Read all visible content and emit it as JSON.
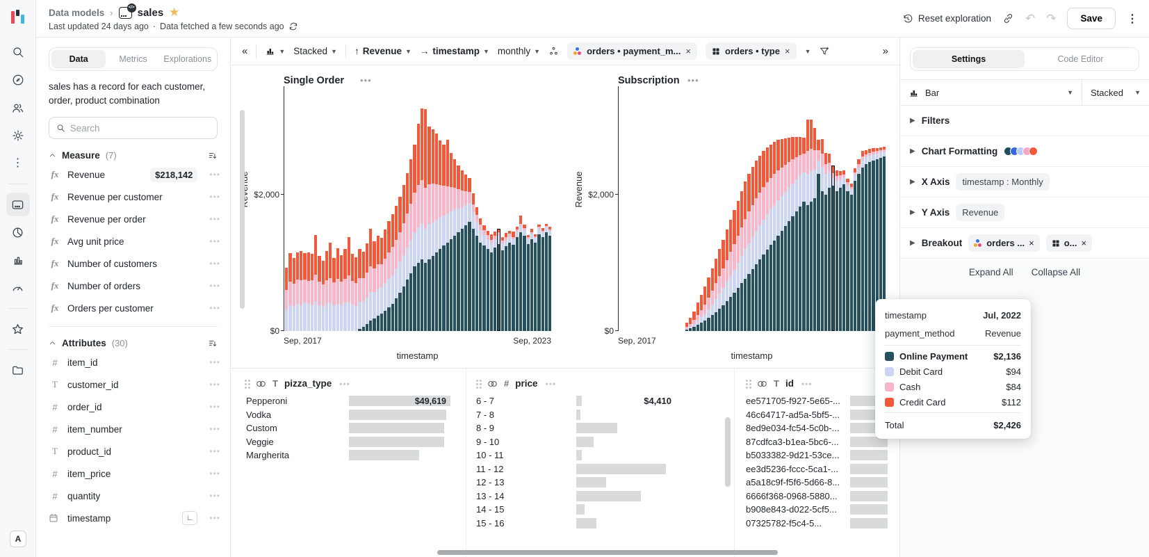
{
  "header": {
    "breadcrumb_root": "Data models",
    "breadcrumb_sep": "›",
    "model_name": "sales",
    "updated": "Last updated 24 days ago",
    "dot_sep": "·",
    "fetched": "Data fetched a few seconds ago",
    "reset_label": "Reset exploration",
    "save_label": "Save"
  },
  "nav_rail": {
    "avatar": "A",
    "icons": [
      "search",
      "explore",
      "members",
      "settings",
      "more",
      "data-model",
      "metrics",
      "charts",
      "dashboards",
      "favorites",
      "folders"
    ]
  },
  "data_panel": {
    "tabs": [
      "Data",
      "Metrics",
      "Explorations"
    ],
    "active_tab": "Data",
    "description": "sales has a record for each customer, order, product combination",
    "search_placeholder": "Search",
    "measures": {
      "title": "Measure",
      "count": "(7)",
      "items": [
        {
          "label": "Revenue",
          "value": "$218,142"
        },
        {
          "label": "Revenue per customer"
        },
        {
          "label": "Revenue per order"
        },
        {
          "label": "Avg unit price"
        },
        {
          "label": "Number of customers"
        },
        {
          "label": "Number of orders"
        },
        {
          "label": "Orders per customer"
        }
      ]
    },
    "attributes": {
      "title": "Attributes",
      "count": "(30)",
      "items": [
        {
          "icon": "number",
          "label": "item_id"
        },
        {
          "icon": "text",
          "label": "customer_id"
        },
        {
          "icon": "number",
          "label": "order_id"
        },
        {
          "icon": "number",
          "label": "item_number"
        },
        {
          "icon": "text",
          "label": "product_id"
        },
        {
          "icon": "number",
          "label": "item_price"
        },
        {
          "icon": "number",
          "label": "quantity"
        },
        {
          "icon": "date",
          "label": "timestamp",
          "has_granularity": true
        }
      ]
    }
  },
  "toolbar": {
    "collapse_glyph": "«",
    "expand_glyph": "»",
    "stacked_label": "Stacked",
    "y_field": "Revenue",
    "x_field": "timestamp",
    "granularity": "monthly",
    "breakout_chips": [
      {
        "label": "orders • payment_m..."
      },
      {
        "label": "orders • type"
      }
    ]
  },
  "chart_data": [
    {
      "type": "bar",
      "stacked": true,
      "title": "Single Order",
      "xlabel": "timestamp",
      "ylabel": "Revenue",
      "x_start": "Sep, 2017",
      "x_end": "Sep, 2023",
      "x_interval": "monthly",
      "months": 73,
      "yticks": [
        "$0",
        "$2,000"
      ],
      "ylim": [
        0,
        3600
      ],
      "series_order": [
        "Online Payment",
        "Debit Card",
        "Cash",
        "Credit Card"
      ],
      "colors": [
        "#27505e",
        "#ccd6f3",
        "#f8b6c8",
        "#f2583a"
      ],
      "highlight_index": 58,
      "bars": [
        [
          0,
          320,
          280,
          330
        ],
        [
          0,
          380,
          340,
          420
        ],
        [
          0,
          360,
          330,
          380
        ],
        [
          0,
          400,
          350,
          400
        ],
        [
          0,
          380,
          360,
          430
        ],
        [
          0,
          420,
          340,
          380
        ],
        [
          0,
          400,
          330,
          420
        ],
        [
          0,
          380,
          360,
          390
        ],
        [
          0,
          430,
          400,
          580
        ],
        [
          0,
          380,
          340,
          380
        ],
        [
          0,
          360,
          320,
          350
        ],
        [
          0,
          400,
          340,
          430
        ],
        [
          0,
          420,
          360,
          520
        ],
        [
          0,
          380,
          330,
          360
        ],
        [
          0,
          400,
          360,
          450
        ],
        [
          0,
          380,
          340,
          390
        ],
        [
          0,
          420,
          350,
          430
        ],
        [
          0,
          430,
          390,
          560
        ],
        [
          0,
          390,
          340,
          400
        ],
        [
          0,
          370,
          330,
          380
        ],
        [
          30,
          400,
          350,
          420
        ],
        [
          60,
          380,
          340,
          380
        ],
        [
          100,
          400,
          360,
          430
        ],
        [
          150,
          420,
          380,
          550
        ],
        [
          180,
          390,
          350,
          400
        ],
        [
          220,
          400,
          360,
          420
        ],
        [
          260,
          380,
          340,
          390
        ],
        [
          300,
          400,
          360,
          430
        ],
        [
          350,
          420,
          380,
          460
        ],
        [
          400,
          430,
          400,
          480
        ],
        [
          480,
          440,
          420,
          500
        ],
        [
          560,
          450,
          440,
          520
        ],
        [
          650,
          460,
          470,
          560
        ],
        [
          750,
          470,
          500,
          600
        ],
        [
          850,
          480,
          540,
          650
        ],
        [
          950,
          500,
          580,
          700
        ],
        [
          1000,
          520,
          620,
          900
        ],
        [
          1050,
          520,
          640,
          1050
        ],
        [
          1000,
          500,
          600,
          1150
        ],
        [
          1050,
          520,
          580,
          850
        ],
        [
          1100,
          500,
          560,
          800
        ],
        [
          1150,
          480,
          520,
          750
        ],
        [
          1200,
          460,
          480,
          650
        ],
        [
          1250,
          440,
          440,
          600
        ],
        [
          1300,
          420,
          400,
          680
        ],
        [
          1350,
          400,
          360,
          500
        ],
        [
          1400,
          380,
          320,
          420
        ],
        [
          1450,
          350,
          280,
          350
        ],
        [
          1500,
          320,
          240,
          300
        ],
        [
          1550,
          300,
          200,
          250
        ],
        [
          1600,
          280,
          160,
          200
        ],
        [
          1500,
          240,
          120,
          160
        ],
        [
          1400,
          200,
          100,
          120
        ],
        [
          1300,
          180,
          80,
          90
        ],
        [
          1250,
          160,
          70,
          70
        ],
        [
          1200,
          150,
          60,
          60
        ],
        [
          1150,
          140,
          50,
          80
        ],
        [
          1220,
          130,
          50,
          60
        ],
        [
          1280,
          120,
          45,
          55
        ],
        [
          1180,
          110,
          40,
          50
        ],
        [
          1240,
          100,
          40,
          60
        ],
        [
          1300,
          90,
          35,
          45
        ],
        [
          1260,
          85,
          30,
          80
        ],
        [
          1380,
          80,
          30,
          40
        ],
        [
          1450,
          90,
          35,
          120
        ],
        [
          1400,
          80,
          30,
          50
        ],
        [
          1280,
          70,
          25,
          35
        ],
        [
          1350,
          75,
          25,
          45
        ],
        [
          1300,
          70,
          20,
          30
        ],
        [
          1420,
          80,
          25,
          40
        ],
        [
          1380,
          70,
          20,
          35
        ],
        [
          1450,
          75,
          20,
          30
        ],
        [
          1400,
          70,
          20,
          40
        ]
      ]
    },
    {
      "type": "bar",
      "stacked": true,
      "title": "Subscription",
      "xlabel": "timestamp",
      "ylabel": "Revenue",
      "x_start": "Sep, 2017",
      "x_end": "Sep, 2023",
      "x_interval": "monthly",
      "months": 73,
      "yticks": [
        "$0",
        "$2,000"
      ],
      "ylim": [
        0,
        3600
      ],
      "series_order": [
        "Online Payment",
        "Debit Card",
        "Cash",
        "Credit Card"
      ],
      "colors": [
        "#27505e",
        "#ccd6f3",
        "#f8b6c8",
        "#f2583a"
      ],
      "highlight_index": 58,
      "bars": [
        [
          0,
          0,
          0,
          0
        ],
        [
          0,
          0,
          0,
          0
        ],
        [
          0,
          0,
          0,
          0
        ],
        [
          0,
          0,
          0,
          0
        ],
        [
          0,
          0,
          0,
          0
        ],
        [
          0,
          0,
          0,
          0
        ],
        [
          0,
          0,
          0,
          0
        ],
        [
          0,
          0,
          0,
          0
        ],
        [
          0,
          0,
          0,
          0
        ],
        [
          0,
          0,
          0,
          0
        ],
        [
          0,
          0,
          0,
          0
        ],
        [
          0,
          0,
          0,
          0
        ],
        [
          0,
          0,
          0,
          0
        ],
        [
          0,
          0,
          0,
          0
        ],
        [
          0,
          0,
          0,
          0
        ],
        [
          0,
          0,
          0,
          0
        ],
        [
          0,
          0,
          0,
          0
        ],
        [
          0,
          0,
          0,
          0
        ],
        [
          20,
          15,
          25,
          60
        ],
        [
          40,
          25,
          40,
          90
        ],
        [
          60,
          40,
          60,
          130
        ],
        [
          90,
          60,
          90,
          180
        ],
        [
          120,
          80,
          110,
          220
        ],
        [
          150,
          100,
          140,
          260
        ],
        [
          190,
          130,
          170,
          300
        ],
        [
          230,
          160,
          200,
          330
        ],
        [
          280,
          190,
          230,
          360
        ],
        [
          330,
          220,
          260,
          390
        ],
        [
          380,
          250,
          290,
          420
        ],
        [
          440,
          280,
          320,
          450
        ],
        [
          500,
          310,
          350,
          470
        ],
        [
          560,
          340,
          380,
          490
        ],
        [
          630,
          370,
          400,
          510
        ],
        [
          700,
          400,
          420,
          530
        ],
        [
          770,
          430,
          440,
          550
        ],
        [
          840,
          450,
          460,
          560
        ],
        [
          910,
          470,
          470,
          560
        ],
        [
          980,
          490,
          480,
          550
        ],
        [
          1050,
          500,
          480,
          540
        ],
        [
          1120,
          510,
          480,
          530
        ],
        [
          1190,
          520,
          470,
          510
        ],
        [
          1260,
          520,
          460,
          490
        ],
        [
          1330,
          520,
          450,
          470
        ],
        [
          1400,
          520,
          440,
          440
        ],
        [
          1470,
          510,
          420,
          420
        ],
        [
          1540,
          500,
          400,
          390
        ],
        [
          1610,
          490,
          380,
          360
        ],
        [
          1680,
          480,
          360,
          330
        ],
        [
          1750,
          470,
          330,
          300
        ],
        [
          1830,
          450,
          300,
          270
        ],
        [
          1900,
          430,
          270,
          240
        ],
        [
          1850,
          460,
          330,
          460
        ],
        [
          1900,
          450,
          320,
          430
        ],
        [
          1950,
          420,
          280,
          330
        ],
        [
          2300,
          200,
          150,
          150
        ],
        [
          2050,
          350,
          200,
          220
        ],
        [
          2000,
          300,
          150,
          160
        ],
        [
          2100,
          250,
          120,
          130
        ],
        [
          2136,
          94,
          84,
          112
        ],
        [
          2050,
          150,
          70,
          90
        ],
        [
          2100,
          120,
          60,
          70
        ],
        [
          2150,
          100,
          50,
          60
        ],
        [
          2050,
          90,
          40,
          50
        ],
        [
          2000,
          80,
          35,
          45
        ],
        [
          2200,
          90,
          40,
          60
        ],
        [
          2300,
          100,
          45,
          70
        ],
        [
          2400,
          110,
          50,
          80
        ],
        [
          2450,
          100,
          45,
          60
        ],
        [
          2480,
          95,
          40,
          55
        ],
        [
          2500,
          90,
          40,
          50
        ],
        [
          2520,
          85,
          35,
          45
        ],
        [
          2540,
          80,
          30,
          40
        ],
        [
          2560,
          75,
          30,
          40
        ]
      ]
    }
  ],
  "summary_columns": {
    "pizza_type": {
      "title": "pizza_type",
      "type_icon": "T",
      "rows": [
        {
          "label": "Pepperoni",
          "value": "$49,619",
          "bar": 1.0
        },
        {
          "label": "Vodka",
          "bar": 0.96
        },
        {
          "label": "Custom",
          "bar": 0.94
        },
        {
          "label": "Veggie",
          "bar": 0.94
        },
        {
          "label": "Margherita",
          "bar": 0.69
        }
      ]
    },
    "price": {
      "title": "price",
      "type_icon": "#",
      "rows": [
        {
          "label": "6 - 7",
          "value": "$4,410",
          "bar": 0.06
        },
        {
          "label": "7 - 8",
          "bar": 0.015
        },
        {
          "label": "8 - 9",
          "bar": 0.44
        },
        {
          "label": "9 - 10",
          "bar": 0.19
        },
        {
          "label": "10 - 11",
          "bar": 0.06
        },
        {
          "label": "11 - 12",
          "bar": 0.97
        },
        {
          "label": "12 - 13",
          "bar": 0.32
        },
        {
          "label": "13 - 14",
          "bar": 0.7
        },
        {
          "label": "14 - 15",
          "bar": 0.09
        },
        {
          "label": "15 - 16",
          "bar": 0.22
        }
      ]
    },
    "id": {
      "title": "id",
      "type_icon": "T",
      "rows": [
        {
          "label": "ee571705-f927-5e65-...",
          "bar": 1
        },
        {
          "label": "46c64717-ad5a-5bf5-...",
          "bar": 1
        },
        {
          "label": "8ed9e034-fc54-5c0b-...",
          "bar": 1
        },
        {
          "label": "87cdfca3-b1ea-5bc6-...",
          "bar": 1
        },
        {
          "label": "b5033382-9d21-53ce...",
          "bar": 1
        },
        {
          "label": "ee3d5236-fccc-5ca1-...",
          "bar": 1
        },
        {
          "label": "a5a18c9f-f5f6-5d66-8...",
          "bar": 1
        },
        {
          "label": "6666f368-0968-5880...",
          "bar": 1
        },
        {
          "label": "b908e843-d022-5cf5...",
          "bar": 1
        },
        {
          "label": "07325782-f5c4-5...",
          "bar": 1
        }
      ]
    }
  },
  "settings_panel": {
    "tabs": [
      "Settings",
      "Code Editor"
    ],
    "active_tab": "Settings",
    "viz_type": "Bar",
    "viz_mode": "Stacked",
    "filters_label": "Filters",
    "chart_formatting_label": "Chart Formatting",
    "palette_dots": [
      "#1d4e5c",
      "#3a67e0",
      "#b9ccf4",
      "#f7a6c1",
      "#f4573a"
    ],
    "x_axis_label": "X Axis",
    "x_axis_chip": "timestamp : Monthly",
    "y_axis_label": "Y Axis",
    "y_axis_chip": "Revenue",
    "breakout_label": "Breakout",
    "breakout_chip_1": "orders ...",
    "breakout_chip_2": "o...",
    "expand_all": "Expand All",
    "collapse_all": "Collapse All"
  },
  "tooltip": {
    "title_label": "timestamp",
    "title_value": "Jul, 2022",
    "sub_label": "payment_method",
    "sub_value": "Revenue",
    "rows": [
      {
        "name": "Online Payment",
        "value": "$2,136",
        "color": "#27505e",
        "bold": true
      },
      {
        "name": "Debit Card",
        "value": "$94",
        "color": "#ccd6f3"
      },
      {
        "name": "Cash",
        "value": "$84",
        "color": "#f8b6c8"
      },
      {
        "name": "Credit Card",
        "value": "$112",
        "color": "#f2583a"
      }
    ],
    "total_label": "Total",
    "total_value": "$2,426"
  },
  "colors": {
    "online_payment": "#27505e",
    "debit_card": "#ccd6f3",
    "cash": "#f8b6c8",
    "credit_card": "#f2583a",
    "summary_bar_gray": "#d9dadb",
    "star_gold": "#f0b959"
  }
}
